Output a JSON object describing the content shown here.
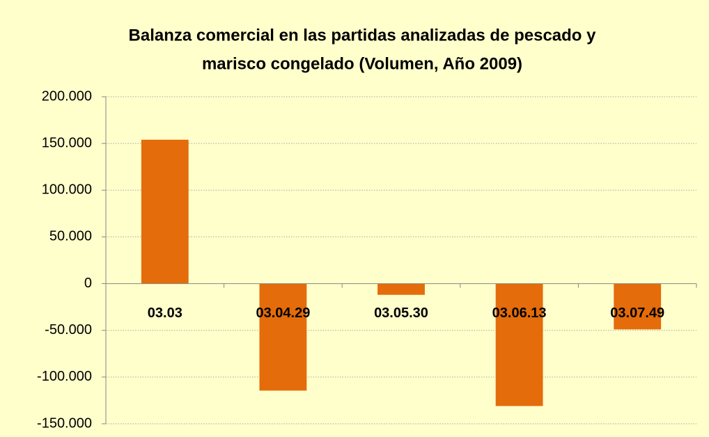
{
  "chart_data": {
    "type": "bar",
    "title": [
      "Balanza comercial en las partidas analizadas de pescado y",
      "marisco congelado (Volumen, Año 2009)"
    ],
    "categories": [
      "03.03",
      "03.04.29",
      "03.05.30",
      "03.06.13",
      "03.07.49"
    ],
    "values": [
      154000,
      -114500,
      -12000,
      -131000,
      -49000
    ],
    "color": "#e46c0a",
    "ylim": [
      -150000,
      200000
    ],
    "yticks": [
      {
        "value": -150000,
        "label": "-150.000"
      },
      {
        "value": -100000,
        "label": "-100.000"
      },
      {
        "value": -50000,
        "label": "-50.000"
      },
      0,
      {
        "value": 50000,
        "label": "50.000"
      },
      {
        "value": 100000,
        "label": "100.000"
      },
      {
        "value": 150000,
        "label": "150.000"
      },
      {
        "value": 200000,
        "label": "200.000"
      }
    ],
    "grid": true
  }
}
